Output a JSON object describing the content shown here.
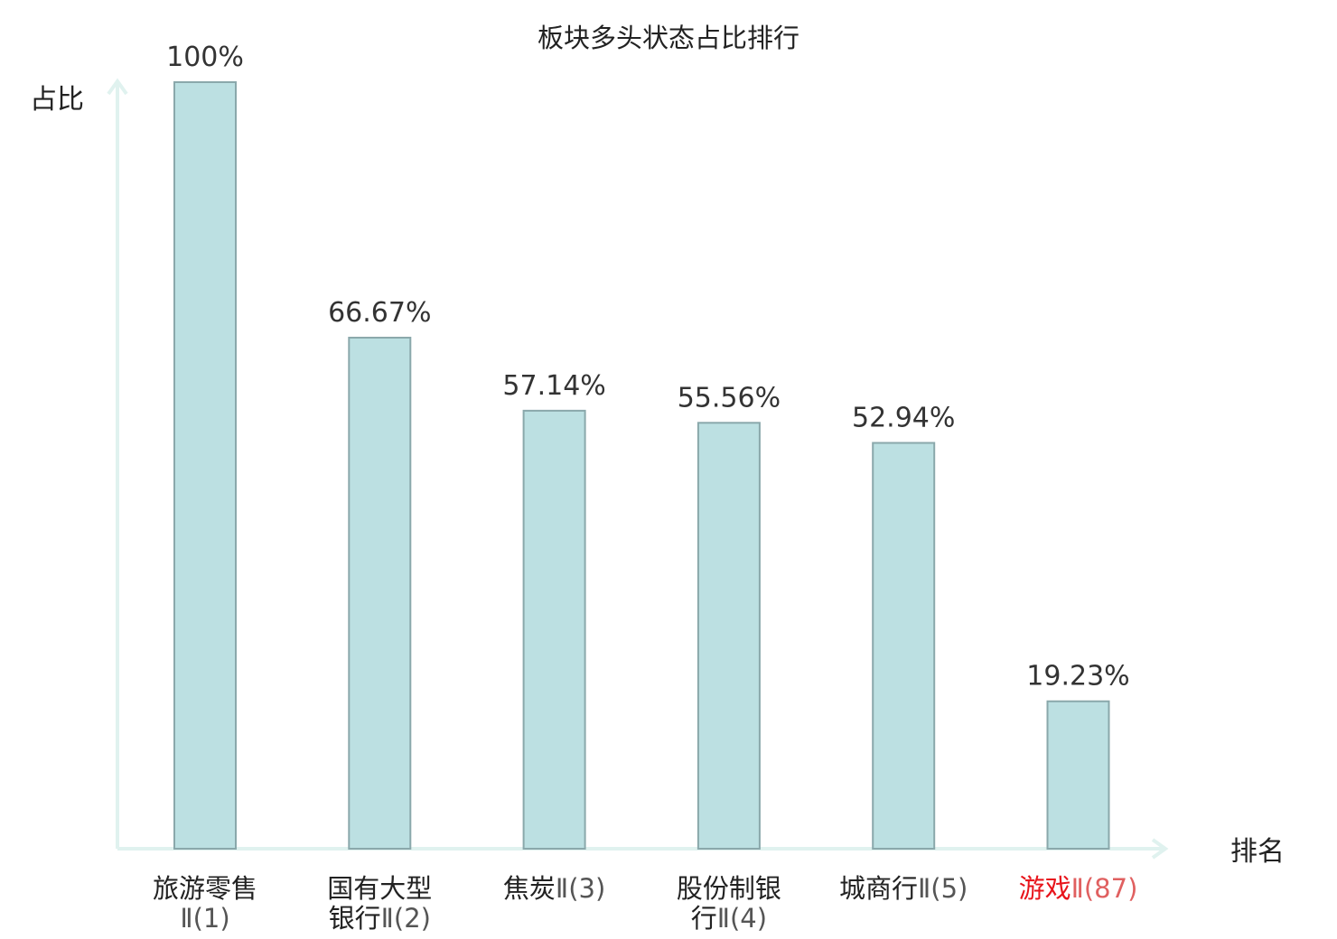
{
  "chart_data": {
    "type": "bar",
    "title": "板块多头状态占比排行",
    "ylabel": "占比",
    "xlabel": "排名",
    "ylim": [
      0,
      100
    ],
    "grid": false,
    "unit": "%",
    "categories": [
      [
        "旅游零售",
        "Ⅱ(1)"
      ],
      [
        "国有大型",
        "银行Ⅱ(2)"
      ],
      [
        "焦炭Ⅱ(3)"
      ],
      [
        "股份制银",
        "行Ⅱ(4)"
      ],
      [
        "城商行Ⅱ(5)"
      ],
      [
        "游戏Ⅱ(87)"
      ]
    ],
    "values": [
      100,
      66.67,
      57.14,
      55.56,
      52.94,
      19.23
    ],
    "value_labels": [
      "100%",
      "66.67%",
      "57.14%",
      "55.56%",
      "52.94%",
      "19.23%"
    ],
    "highlight_index": 5,
    "colors": {
      "bar_fill": "#bce0e2",
      "bar_stroke": "#8aa8ab",
      "axis": "#e0f2ef",
      "text": "#333333",
      "highlight_name": "#e8141b",
      "highlight_rank": "#e06060",
      "rank_text": "#555555"
    }
  }
}
